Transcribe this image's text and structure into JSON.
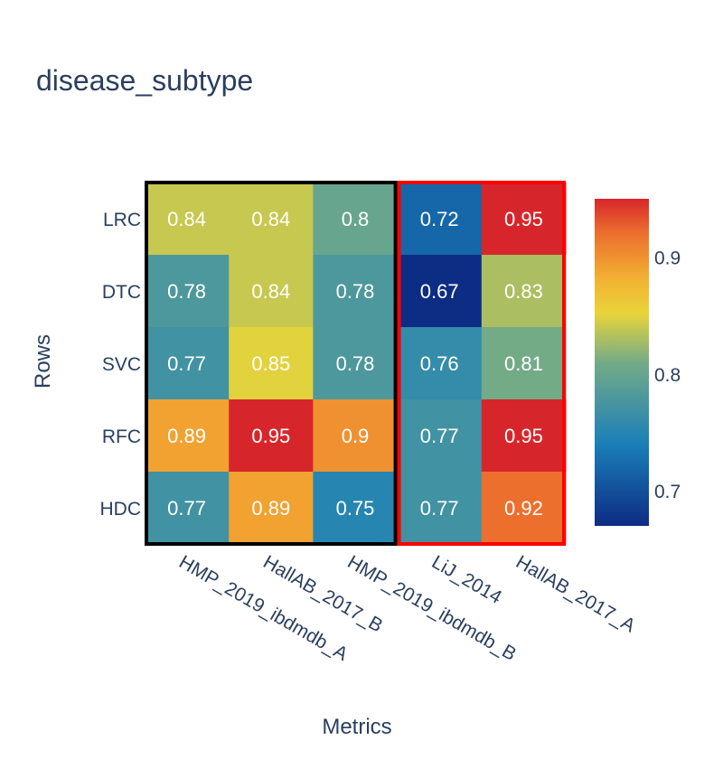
{
  "chart_data": {
    "type": "heatmap",
    "title": "disease_subtype",
    "xlabel": "Metrics",
    "ylabel": "Rows",
    "categories_x": [
      "HMP_2019_ibdmdb_A",
      "HallAB_2017_B",
      "HMP_2019_ibdmdb_B",
      "LiJ_2014",
      "HallAB_2017_A"
    ],
    "categories_y": [
      "LRC",
      "DTC",
      "SVC",
      "RFC",
      "HDC"
    ],
    "z": [
      [
        0.84,
        0.84,
        0.8,
        0.72,
        0.95
      ],
      [
        0.78,
        0.84,
        0.78,
        0.67,
        0.83
      ],
      [
        0.77,
        0.85,
        0.78,
        0.76,
        0.81
      ],
      [
        0.89,
        0.95,
        0.9,
        0.77,
        0.95
      ],
      [
        0.77,
        0.89,
        0.75,
        0.77,
        0.92
      ]
    ],
    "zlim": [
      0.67,
      0.95
    ],
    "colorbar": {
      "ticks": [
        0.7,
        0.8,
        0.9
      ],
      "tick_labels": [
        "0.7",
        "0.8",
        "0.9"
      ]
    },
    "colorscale": [
      [
        0.0,
        "#0d2c84"
      ],
      [
        0.25,
        "#1a7fb8"
      ],
      [
        0.5,
        "#74ab87"
      ],
      [
        0.65,
        "#e8d43a"
      ],
      [
        0.75,
        "#f2b332"
      ],
      [
        0.9,
        "#ec6c2e"
      ],
      [
        1.0,
        "#d7262b"
      ]
    ],
    "highlight_groups": [
      {
        "columns": [
          0,
          2
        ],
        "color": "#000000"
      },
      {
        "columns": [
          3,
          4
        ],
        "color": "#ff0000"
      }
    ],
    "grid": false
  }
}
